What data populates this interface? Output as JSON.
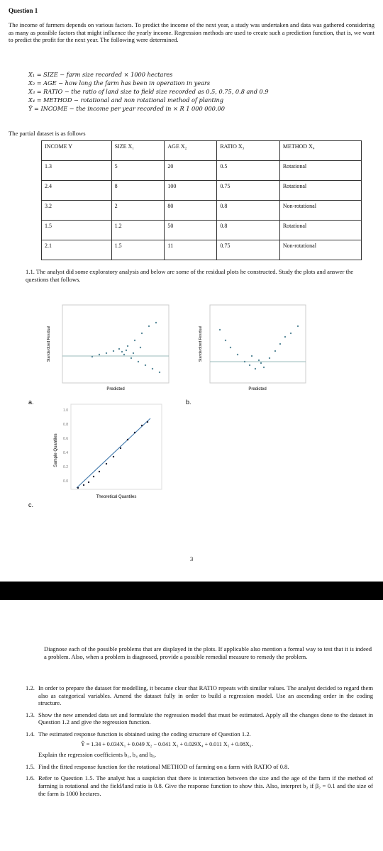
{
  "question_title": "Question 1",
  "intro": "The income of farmers depends on various factors. To predict the income of the next year, a study was undertaken and data was gathered considering as many as possible factors that might influence the yearly income. Regression methods are used to create such a prediction function, that is, we want to predict the profit for the next year. The following were determined.",
  "variables": [
    "X₁ = SIZE − farm size recorded × 1000 hectares",
    "X₂ = AGE − how long the farm has been in operation in years",
    "X₃ = RATIO − the ratio of land size to field size recorded as 0.5, 0.75, 0.8 and 0.9",
    "X₄ = METHOD − rotational and non rotational method of planting",
    "Ŷ = INCOME − the income per year recorded in × R 1 000 000.00"
  ],
  "table_caption": "The partial dataset is as follows",
  "table": {
    "header": [
      "INCOME Y",
      "SIZE X₁",
      "AGE X₂",
      "RATIO X₃",
      "METHOD X₄"
    ],
    "rows": [
      [
        "1.3",
        "5",
        "20",
        "0.5",
        "Rotational"
      ],
      [
        "2.4",
        "8",
        "100",
        "0.75",
        "Rotational"
      ],
      [
        "3.2",
        "2",
        "80",
        "0.8",
        "Non-rotational"
      ],
      [
        "1.5",
        "1.2",
        "50",
        "0.8",
        "Rotational"
      ],
      [
        "2.1",
        "1.5",
        "11",
        "0.75",
        "Non-rotational"
      ]
    ]
  },
  "q1_1": "1.1. The analyst did some exploratory analysis and below are some of the residual plots he constructed. Study the plots and answer the questions that follows.",
  "plots": [
    {
      "label": "a.",
      "x_label": "Predicted",
      "y_label": "Standardized Residual"
    },
    {
      "label": "b.",
      "x_label": "Predicted",
      "y_label": "Standardized Residual"
    },
    {
      "label": "c.",
      "x_label": "Theoretical Quantiles",
      "y_label": "Sample Quantiles",
      "yticks": [
        "1.0",
        "0.8",
        "0.6",
        "0.4",
        "0.2",
        "0.0"
      ]
    }
  ],
  "page_number": "3",
  "diagnose": "Diagnose each of the possible problems that are displayed in the plots. If applicable also mention a formal way to test that it is indeed a problem. Also, when a problem is diagnosed, provide a possible remedial measure to remedy the problem.",
  "questions": [
    {
      "number": "1.2.",
      "text": "In order to prepare the dataset for modelling, it became clear that RATIO repeats with similar values. The analyst decided to regard them also as categorical variables. Amend the dataset fully in order to build a regression model. Use an ascending order in the coding structure."
    },
    {
      "number": "1.3.",
      "text": "Show the new amended data set and formulate the regression model that must be estimated. Apply all the changes done to the dataset in Question 1.2 and give the regression function."
    },
    {
      "number": "1.4.",
      "text": "The estimated response function is obtained using the coding structure of Question 1.2.",
      "equation": "Ŷ = 1.34 + 0.034X₁ + 0.049 X₂ − 0.041 X₃ + 0.029X₄ + 0.011 X₅ + 0.08X₆.",
      "followup": "Explain the regression coefficients b₁, b₄ and b₆."
    },
    {
      "number": "1.5.",
      "text": "Find the fitted response function for the rotational METHOD of farming on a farm with RATIO of 0.8."
    },
    {
      "number": "1.6.",
      "text": "Refer to Question 1.5. The analyst has a suspicion that there is interaction between the size and the age of the farm if the method of farming is rotational and the field/land ratio is 0.8. Give the response function to show this. Also, interpret b₂ if β₂ = 0.1 and the size of the farm is 1000 hectares."
    }
  ]
}
